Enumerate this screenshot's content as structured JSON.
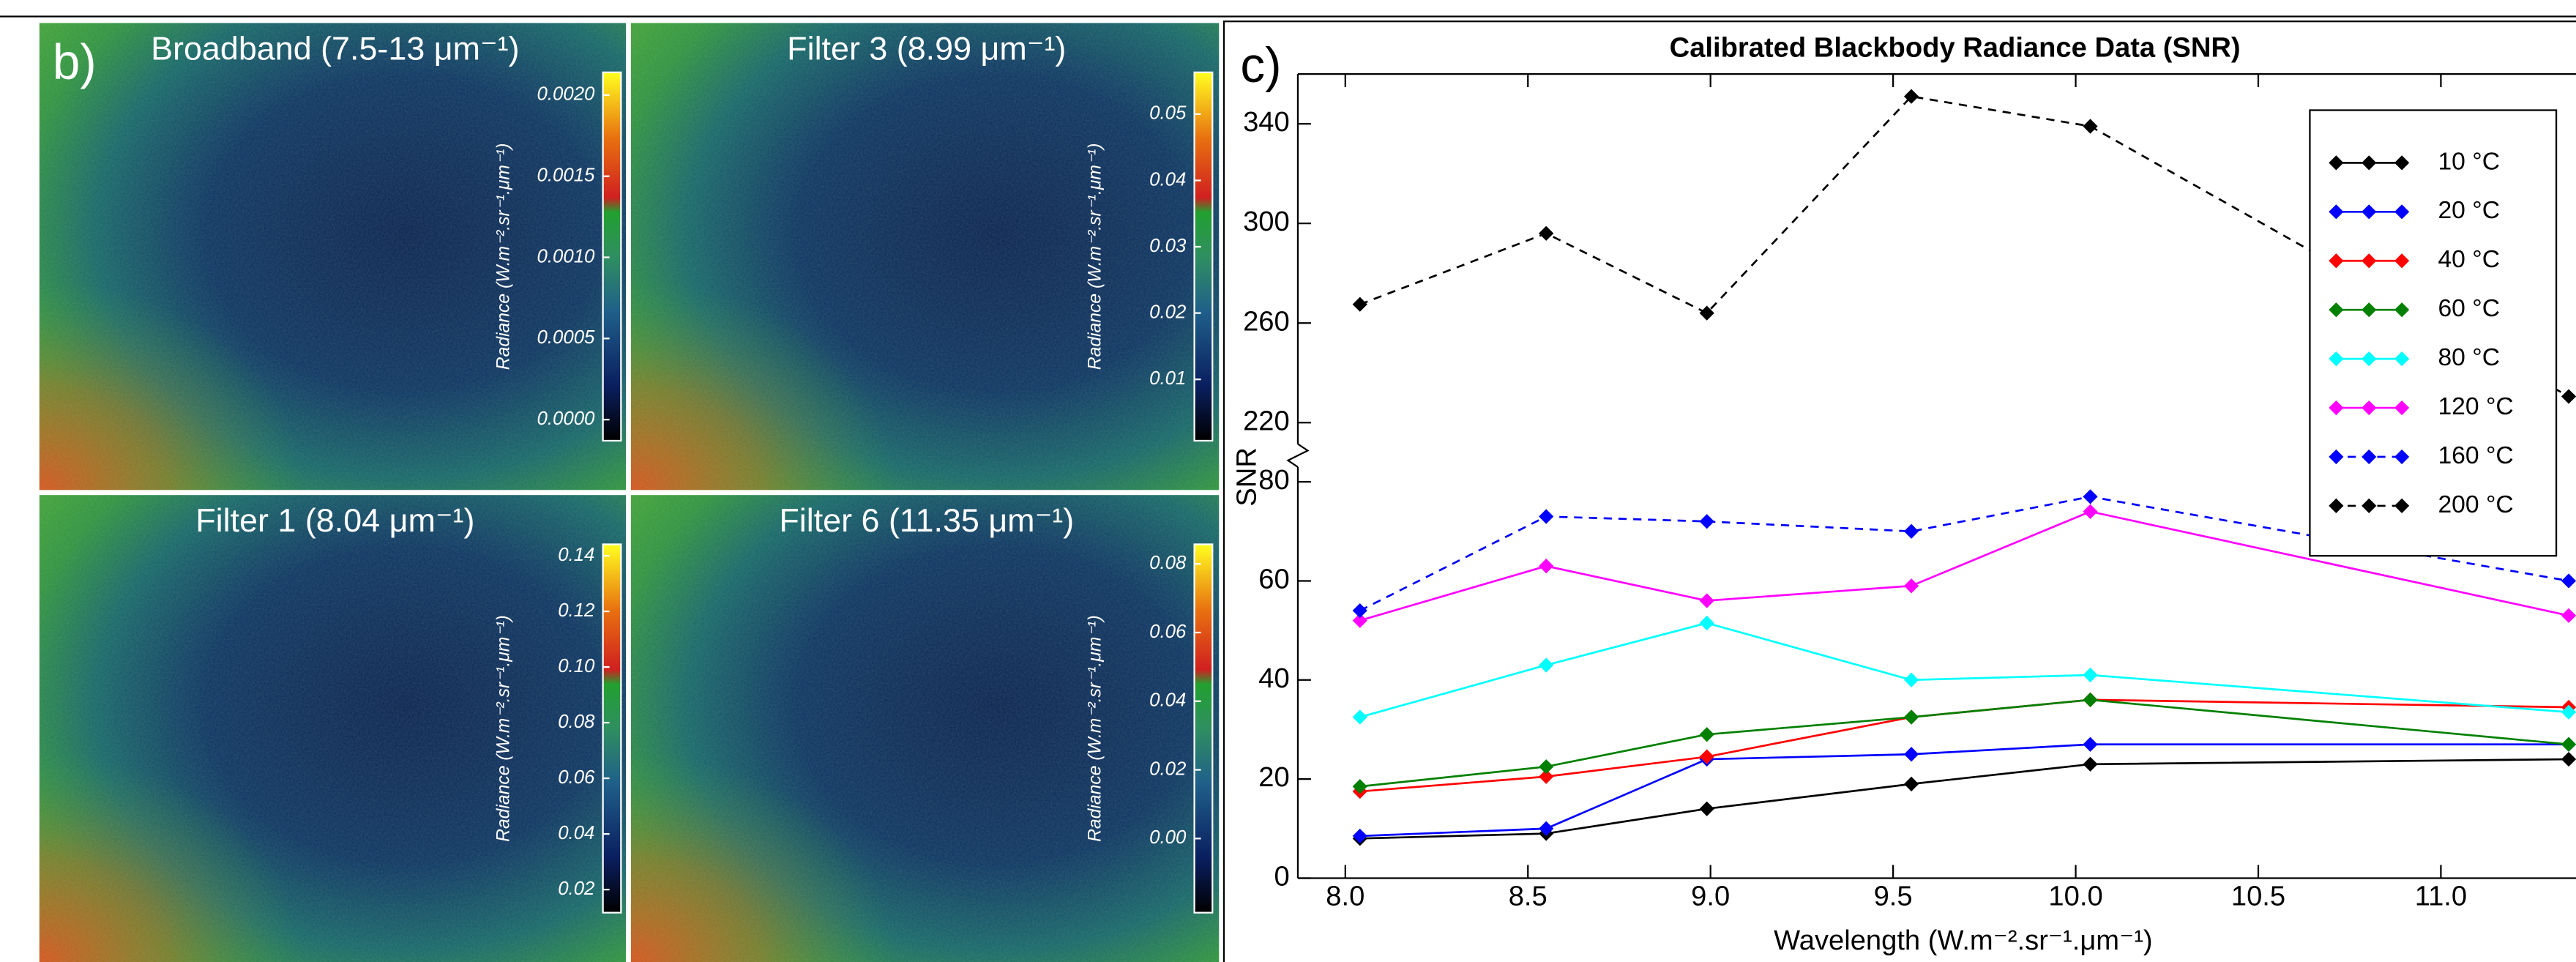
{
  "panel_b": {
    "label": "b)",
    "panels": [
      {
        "title": "Broadband (7.5-13 μm⁻¹)",
        "colorbar_label": "Radiance (W.m⁻².sr⁻¹.μm⁻¹)",
        "cbar_lim": [
          -0.00013,
          0.00214
        ],
        "cbar_ticks": [
          {
            "value": 0,
            "label": "0.0000"
          },
          {
            "value": 0.0005,
            "label": "0.0005"
          },
          {
            "value": 0.001,
            "label": "0.0010"
          },
          {
            "value": 0.0015,
            "label": "0.0015"
          },
          {
            "value": 0.002,
            "label": "0.0020"
          }
        ]
      },
      {
        "title": "Filter 3 (8.99 μm⁻¹)",
        "colorbar_label": "Radiance (W.m⁻².sr⁻¹.μm⁻¹)",
        "cbar_lim": [
          0.00075,
          0.0563
        ],
        "cbar_ticks": [
          0.01,
          0.02,
          0.03,
          0.04,
          0.05
        ]
      },
      {
        "title": "Filter 1 (8.04 μm⁻¹)",
        "colorbar_label": "Radiance (W.m⁻².sr⁻¹.μm⁻¹)",
        "cbar_lim": [
          0.0117,
          0.1441
        ],
        "cbar_ticks": [
          0.02,
          0.04,
          0.06,
          0.08,
          {
            "value": 0.1,
            "label": "0.10"
          },
          0.12,
          0.14
        ]
      },
      {
        "title": "Filter 6 (11.35 μm⁻¹)",
        "colorbar_label": "Radiance (W.m⁻².sr⁻¹.μm⁻¹)",
        "cbar_lim": [
          -0.0216,
          0.0857
        ],
        "cbar_ticks": [
          {
            "value": 0,
            "label": "0.00"
          },
          0.02,
          0.04,
          0.06,
          0.08
        ]
      }
    ]
  },
  "chart_data": {
    "type": "line",
    "panel_label": "c)",
    "title": "Calibrated Blackbody Radiance Data (SNR)",
    "x_label": "Wavelength (W.m⁻².sr⁻¹.μm⁻¹)",
    "y_label": "SNR",
    "x": [
      8.04,
      8.55,
      8.99,
      9.55,
      10.04,
      11.35
    ],
    "xlim": [
      7.87,
      11.37
    ],
    "xticks": [
      {
        "value": 8,
        "label": "8.0"
      },
      8.5,
      {
        "value": 9,
        "label": "9.0"
      },
      9.5,
      {
        "value": 10,
        "label": "10.0"
      },
      10.5,
      {
        "value": 11,
        "label": "11.0"
      }
    ],
    "ylim": [
      0,
      80
    ],
    "yticks": [
      0,
      20,
      40,
      60,
      80
    ],
    "y2lim": [
      220,
      360
    ],
    "y2ticks": [
      220,
      260,
      300,
      340
    ],
    "legend": "upper right",
    "series": [
      {
        "name": "10 °C",
        "color": "#000000",
        "linestyle": "solid",
        "values": [
          8,
          9,
          14,
          19,
          23,
          24
        ]
      },
      {
        "name": "20 °C",
        "color": "#0000ff",
        "linestyle": "solid",
        "values": [
          8.5,
          10,
          24,
          25,
          27,
          27
        ]
      },
      {
        "name": "40 °C",
        "color": "#ff0000",
        "linestyle": "solid",
        "values": [
          17.5,
          20.5,
          24.5,
          32.5,
          36,
          34.5
        ]
      },
      {
        "name": "60 °C",
        "color": "#008000",
        "linestyle": "solid",
        "values": [
          18.5,
          22.5,
          29,
          32.5,
          36,
          27
        ]
      },
      {
        "name": "80 °C",
        "color": "#00ffff",
        "linestyle": "solid",
        "values": [
          32.5,
          43,
          51.5,
          40,
          41,
          33.5
        ]
      },
      {
        "name": "120 °C",
        "color": "#ff00ff",
        "linestyle": "solid",
        "values": [
          52,
          63,
          56,
          59,
          74,
          53
        ]
      },
      {
        "name": "160 °C",
        "color": "#0000ff",
        "linestyle": "dashed",
        "values": [
          54,
          73,
          72,
          70,
          77,
          60
        ]
      },
      {
        "name": "200 °C",
        "color": "#000000",
        "linestyle": "dashed",
        "axis": "y2",
        "values": [
          267.5,
          296,
          264,
          351,
          339,
          230.5
        ]
      }
    ]
  }
}
